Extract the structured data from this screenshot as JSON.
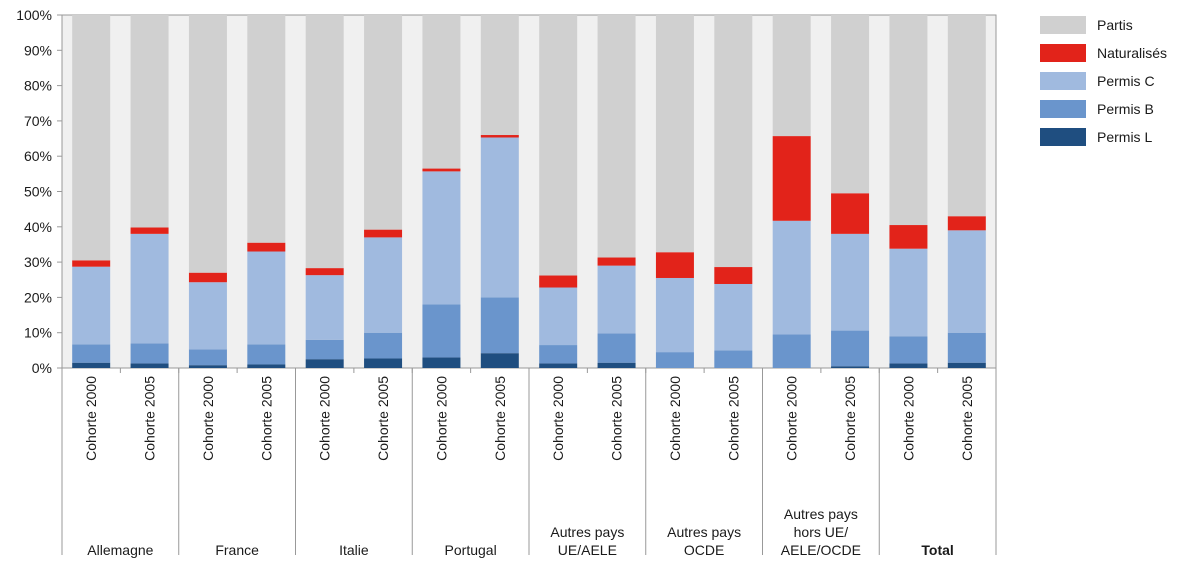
{
  "chart_data": {
    "type": "bar",
    "stacked": true,
    "ylim": [
      0,
      100
    ],
    "yticks": [
      "0%",
      "10%",
      "20%",
      "30%",
      "40%",
      "50%",
      "60%",
      "70%",
      "80%",
      "90%",
      "100%"
    ],
    "categories": [
      "Cohorte 2000",
      "Cohorte 2005",
      "Cohorte 2000",
      "Cohorte 2005",
      "Cohorte 2000",
      "Cohorte 2005",
      "Cohorte 2000",
      "Cohorte 2005",
      "Cohorte 2000",
      "Cohorte 2005",
      "Cohorte 2000",
      "Cohorte 2005",
      "Cohorte 2000",
      "Cohorte 2005",
      "Cohorte 2000",
      "Cohorte 2005"
    ],
    "groups": [
      {
        "label": "Allemagne",
        "bold": false
      },
      {
        "label": "France",
        "bold": false
      },
      {
        "label": "Italie",
        "bold": false
      },
      {
        "label": "Portugal",
        "bold": false
      },
      {
        "label": "Autres pays\nUE/AELE",
        "bold": false
      },
      {
        "label": "Autres pays\nOCDE",
        "bold": false
      },
      {
        "label": "Autres pays\nhors UE/\nAELE/OCDE",
        "bold": false
      },
      {
        "label": "Total",
        "bold": true
      }
    ],
    "series": [
      {
        "name": "Permis L",
        "color": "#1f4e80",
        "values": [
          1.5,
          1.3,
          0.8,
          1.0,
          2.5,
          2.7,
          3.0,
          4.2,
          1.3,
          1.5,
          0.0,
          0.0,
          0.0,
          0.5,
          1.3,
          1.5
        ]
      },
      {
        "name": "Permis B",
        "color": "#6a95cc",
        "values": [
          5.2,
          5.7,
          4.5,
          5.7,
          5.5,
          7.3,
          15.0,
          15.8,
          5.2,
          8.3,
          4.5,
          5.0,
          9.5,
          10.1,
          7.7,
          8.5
        ]
      },
      {
        "name": "Permis C",
        "color": "#a0badf",
        "values": [
          22.0,
          31.0,
          19.0,
          26.3,
          18.3,
          27.0,
          37.7,
          45.3,
          16.3,
          19.2,
          21.0,
          18.8,
          32.2,
          27.4,
          24.8,
          29.0
        ]
      },
      {
        "name": "Naturalisés",
        "color": "#e2231a",
        "values": [
          1.8,
          1.8,
          2.7,
          2.5,
          2.0,
          2.2,
          0.8,
          0.7,
          3.4,
          2.3,
          7.3,
          4.8,
          24.0,
          11.5,
          6.7,
          4.0
        ]
      },
      {
        "name": "Partis",
        "color": "#d0d0d0",
        "values": [
          69.5,
          60.2,
          73.0,
          64.5,
          71.7,
          60.8,
          43.5,
          34.0,
          73.8,
          68.7,
          67.2,
          71.4,
          34.3,
          50.5,
          59.5,
          57.0
        ]
      }
    ],
    "legend_order": [
      "Partis",
      "Naturalisés",
      "Permis C",
      "Permis B",
      "Permis L"
    ],
    "legend_position": "right",
    "grid": false
  }
}
